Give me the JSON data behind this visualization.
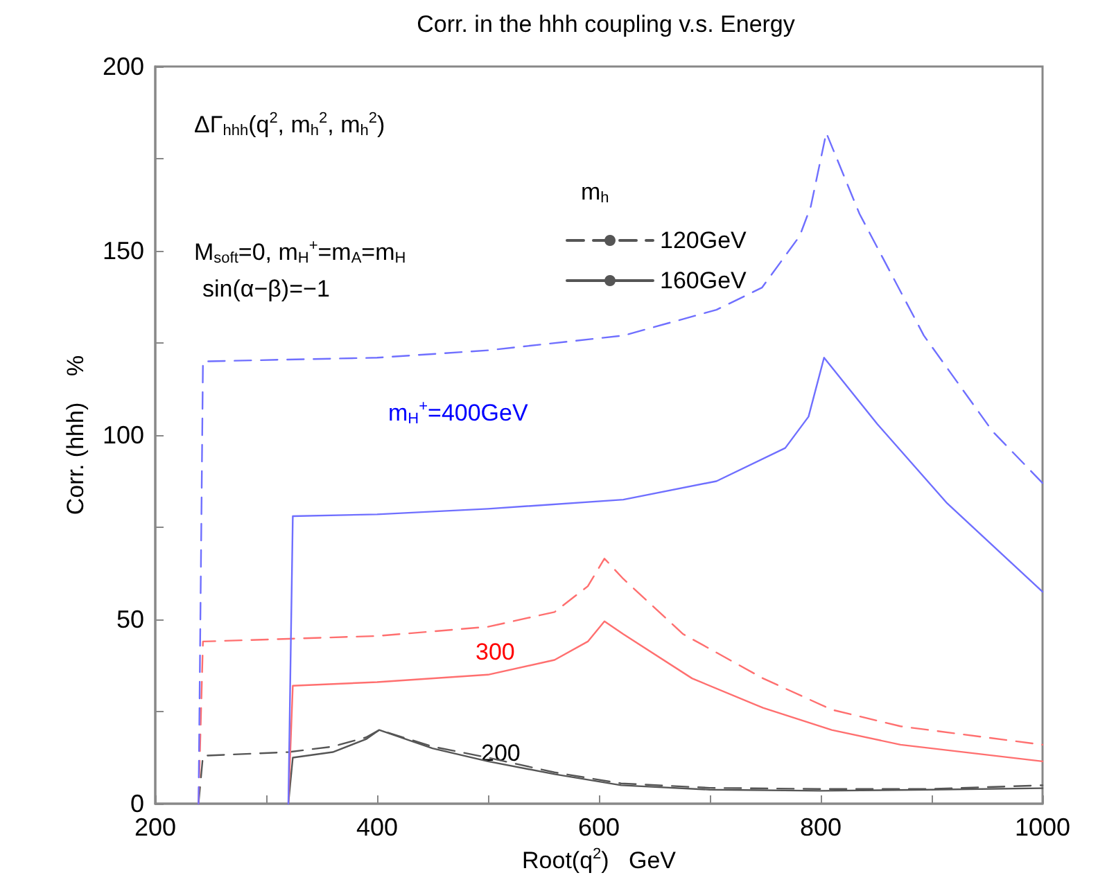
{
  "chart_data": {
    "type": "line",
    "title": "Corr. in the hhh coupling v.s. Energy",
    "xlabel": "Root(q$^{2}$)   GeV",
    "ylabel": "Corr. (hhh)    %",
    "legend_title": "m$_{h}$",
    "legend": "top",
    "marker": "none",
    "grid": false,
    "xlim": [
      200,
      1000
    ],
    "ylim": [
      0,
      200
    ],
    "xticks": [
      200,
      {
        "value": 300,
        "label": null
      },
      400,
      {
        "value": 500,
        "label": null
      },
      600,
      {
        "value": 700,
        "label": null
      },
      800,
      {
        "value": 900,
        "label": null
      },
      1000
    ],
    "yticks": [
      0,
      {
        "value": 25,
        "label": null
      },
      50,
      {
        "value": 75,
        "label": null
      },
      100,
      {
        "value": 125,
        "label": null
      },
      150,
      {
        "value": 175,
        "label": null
      },
      200
    ],
    "series": [
      {
        "name": "120GeV",
        "color": "#555555",
        "line_style": "dashed",
        "x": [
          239,
          243,
          320,
          360,
          390,
          402,
          450,
          500,
          560,
          620,
          700,
          800,
          900,
          1000
        ],
        "values": [
          0,
          13,
          14,
          15.5,
          18,
          20,
          15.5,
          12.5,
          8.5,
          5.5,
          4.3,
          4,
          4,
          5
        ]
      },
      {
        "name": "160GeV",
        "color": "#555555",
        "line_style": "solid",
        "x": [
          320,
          324,
          360,
          390,
          402,
          450,
          500,
          560,
          620,
          700,
          800,
          900,
          1000
        ],
        "values": [
          0,
          12.5,
          14,
          17.5,
          20,
          15,
          11.5,
          8,
          5,
          3.8,
          3.5,
          3.8,
          4.2
        ]
      },
      {
        "color": "#ff6f6f",
        "line_style": "dashed",
        "x": [
          239,
          243,
          400,
          500,
          560,
          590,
          605,
          622,
          676,
          748,
          810,
          872,
          1000
        ],
        "values": [
          0,
          44,
          45.5,
          48,
          52,
          59,
          66.5,
          61,
          46,
          34,
          25.5,
          21,
          16
        ]
      },
      {
        "color": "#ff6f6f",
        "line_style": "solid",
        "x": [
          320,
          324,
          400,
          500,
          560,
          590,
          605,
          622,
          684,
          748,
          810,
          872,
          1000
        ],
        "values": [
          0,
          32,
          33,
          35,
          39,
          44,
          49.5,
          46,
          34,
          26,
          20,
          16,
          11.5
        ]
      },
      {
        "color": "#6f6fff",
        "line_style": "dashed",
        "x": [
          239,
          243,
          400,
          500,
          622,
          706,
          747,
          781,
          791,
          805,
          835,
          893,
          955,
          1000
        ],
        "values": [
          0,
          120,
          121,
          123,
          127,
          134,
          140,
          154,
          162,
          182,
          160,
          127,
          101,
          87
        ]
      },
      {
        "color": "#6f6fff",
        "line_style": "solid",
        "x": [
          320,
          324,
          400,
          500,
          622,
          706,
          768,
          789,
          803,
          851,
          914,
          1000
        ],
        "values": [
          0,
          78,
          78.5,
          80,
          82.5,
          87.5,
          96.5,
          105,
          121,
          103,
          81.5,
          57.5
        ]
      }
    ],
    "annotations": [
      "ΔΓ$_{hhh}$(q$^{2}$, m$_{h}$$^{2}$, m$_{h}$$^{2}$)",
      "M$_{soft}$=0, m$_{H}$$^{+}$=m$_{A}$=m$_{H}$",
      "sin(α−β)=−1",
      "m$_{H}$$^{+}$=400GeV",
      "300",
      "200"
    ]
  }
}
